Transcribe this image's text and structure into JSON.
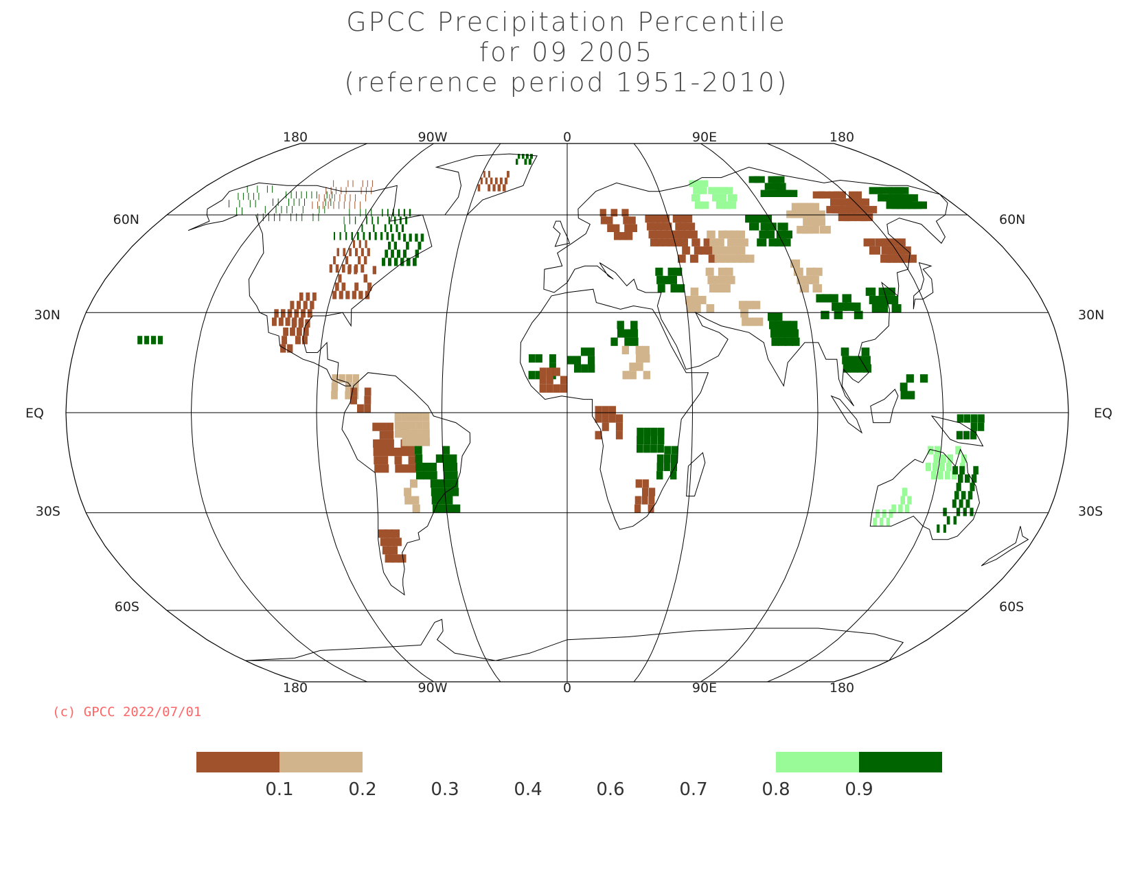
{
  "title": {
    "line1": "GPCC Precipitation Percentile",
    "line2": "for 09 2005",
    "line3": "(reference period 1951-2010)"
  },
  "map": {
    "projection": "robinson",
    "top_lon_labels": [
      "180",
      "90W",
      "0",
      "90E",
      "180"
    ],
    "bottom_lon_labels": [
      "180",
      "90W",
      "0",
      "90E",
      "180"
    ],
    "lat_labels_left": [
      "60N",
      "30N",
      "EQ",
      "30S",
      "60S"
    ],
    "lat_labels_right": [
      "60N",
      "30N",
      "EQ",
      "30S",
      "60S"
    ]
  },
  "copyright": "(c) GPCC 2022/07/01",
  "legend": {
    "colors": {
      "very_dry": "#a0522d",
      "dry": "#d2b48c",
      "wet": "#98fb98",
      "very_wet": "#006400"
    },
    "tick_labels": [
      "0.1",
      "0.2",
      "0.3",
      "0.4",
      "0.6",
      "0.7",
      "0.8",
      "0.9"
    ]
  }
}
